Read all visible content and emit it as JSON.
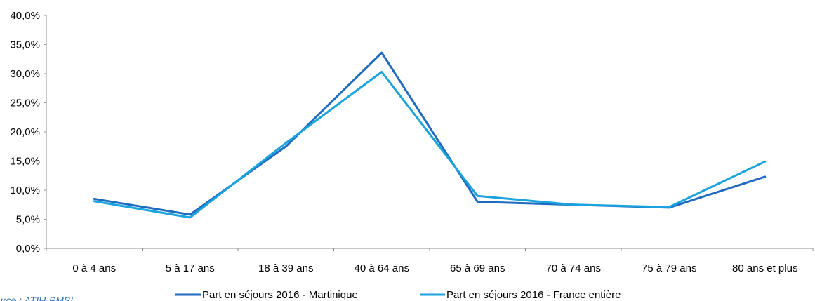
{
  "chart_data": {
    "type": "line",
    "categories": [
      "0 à 4 ans",
      "5 à 17 ans",
      "18 à 39 ans",
      "40 à 64 ans",
      "65 à 69 ans",
      "70 à 74 ans",
      "75 à 79 ans",
      "80 ans et plus"
    ],
    "series": [
      {
        "name": "Part en séjours 2016 - Martinique",
        "color": "#1f6bbf",
        "values": [
          8.5,
          5.8,
          17.5,
          33.6,
          8.0,
          7.5,
          7.0,
          12.3
        ]
      },
      {
        "name": "Part en séjours 2016 - France entière",
        "color": "#1aa3dc",
        "values": [
          8.1,
          5.3,
          18.1,
          30.3,
          9.0,
          7.5,
          7.1,
          14.9
        ]
      }
    ],
    "ylim": [
      0,
      40
    ],
    "yticks": [
      "0,0%",
      "5,0%",
      "10,0%",
      "15,0%",
      "20,0%",
      "25,0%",
      "30,0%",
      "35,0%",
      "40,0%"
    ],
    "grid": false,
    "legend_position": "bottom",
    "source_note": "urce : ATIH-PMSI"
  }
}
